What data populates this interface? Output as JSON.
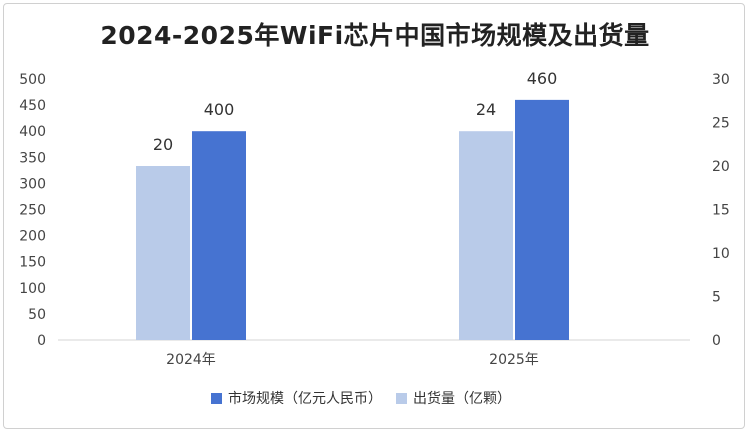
{
  "chart_data": {
    "type": "bar",
    "title": "2024-2025年WiFi芯片中国市场规模及出货量",
    "categories": [
      "2024年",
      "2025年"
    ],
    "series": [
      {
        "name": "出货量（亿颗）",
        "axis": "right",
        "values": [
          20,
          24
        ],
        "color": "#b9cbe9"
      },
      {
        "name": "市场规模（亿元人民币）",
        "axis": "left",
        "values": [
          400,
          460
        ],
        "color": "#4673d1"
      }
    ],
    "y_left": {
      "min": 0,
      "max": 500,
      "step": 50,
      "ticks": [
        "0",
        "50",
        "100",
        "150",
        "200",
        "250",
        "300",
        "350",
        "400",
        "450",
        "500"
      ]
    },
    "y_right": {
      "min": 0,
      "max": 30,
      "step": 5,
      "ticks": [
        "0",
        "5",
        "10",
        "15",
        "20",
        "25",
        "30"
      ]
    },
    "legend": {
      "position": "bottom",
      "order": [
        "市场规模（亿元人民币）",
        "出货量（亿颗）"
      ]
    },
    "grid": false
  }
}
